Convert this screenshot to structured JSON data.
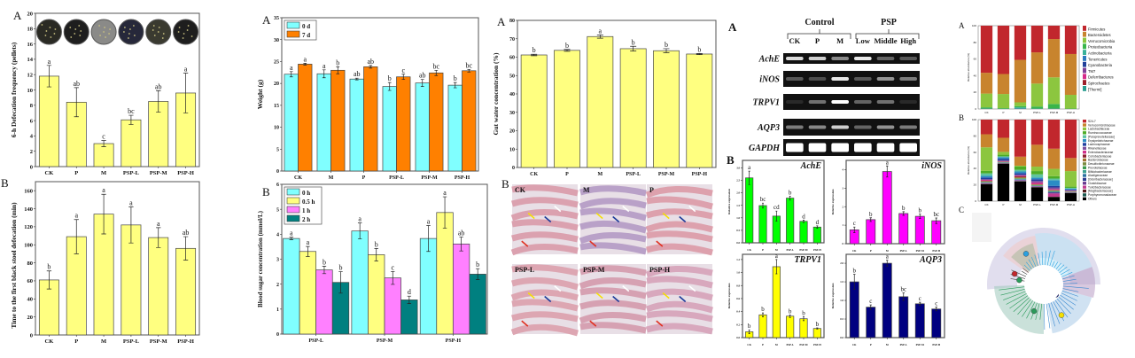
{
  "panel_letters": {
    "defecation": "A",
    "first_black_stool": "B",
    "weight": "A",
    "blood_sugar": "B",
    "gut_water": "A",
    "histology": "B",
    "gel": "A",
    "qpcr": "B",
    "phylum": "A",
    "family": "B",
    "cladogram": "C"
  },
  "chart_data": [
    {
      "id": "defecation",
      "type": "bar",
      "categories": [
        "CK",
        "P",
        "M",
        "PSP-L",
        "PSP-M",
        "PSP-H"
      ],
      "ylabel": "6-h Defecation frequency (pellets)",
      "ylim": [
        0,
        20
      ],
      "yticks": [
        0,
        2,
        4,
        6,
        8,
        10,
        12,
        14,
        16,
        18,
        20
      ],
      "series": [
        {
          "values": [
            11.8,
            8.4,
            3.0,
            6.1,
            8.5,
            9.6
          ],
          "errors": [
            1.4,
            1.9,
            0.4,
            0.6,
            1.4,
            2.6
          ],
          "letters": [
            "a",
            "ab",
            "c",
            "bc",
            "ab",
            "a"
          ],
          "color": "#ffff80"
        }
      ],
      "images": {
        "type": "fecal-pellet-plates",
        "tones": [
          "#2a2a24",
          "#1e1e1e",
          "#8a8a88",
          "#26283a",
          "#3a3a30",
          "#1e1e1e"
        ]
      }
    },
    {
      "id": "first_black_stool",
      "type": "bar",
      "categories": [
        "CK",
        "P",
        "M",
        "PSP-L",
        "PSP-M",
        "PSP-H"
      ],
      "ylabel": "Time to the first black stool defecation (min)",
      "ylim": [
        0,
        170
      ],
      "yticks": [
        0,
        20,
        40,
        60,
        80,
        100,
        120,
        140,
        160
      ],
      "series": [
        {
          "values": [
            61,
            109,
            134,
            122,
            108,
            96
          ],
          "errors": [
            10,
            19,
            22,
            20,
            11,
            13
          ],
          "letters": [
            "b",
            "a",
            "a",
            "a",
            "a",
            "ab"
          ],
          "color": "#ffff80"
        }
      ]
    },
    {
      "id": "weight",
      "type": "bar",
      "categories": [
        "CK",
        "M",
        "P",
        "PSP-L",
        "PSP-M",
        "PSP-H"
      ],
      "ylabel": "Weight (g)",
      "ylim": [
        0,
        35
      ],
      "yticks": [
        0,
        5,
        10,
        15,
        20,
        25,
        30,
        35
      ],
      "legend": "top-left",
      "series": [
        {
          "name": "0 d",
          "values": [
            22.1,
            22.2,
            21.0,
            19.3,
            20.1,
            19.6
          ],
          "errors": [
            0.6,
            0.9,
            0.2,
            0.9,
            0.8,
            0.6
          ],
          "letters": [
            "a",
            "a",
            "ab",
            "b",
            "ab",
            "b"
          ],
          "color": "#80ffff"
        },
        {
          "name": "7 d",
          "values": [
            24.4,
            23.0,
            23.8,
            21.5,
            22.4,
            22.9
          ],
          "errors": [
            0.2,
            0.8,
            0.3,
            0.6,
            0.6,
            0.3
          ],
          "letters": [
            "a",
            "b",
            "ab",
            "c",
            "bc",
            "bc"
          ],
          "color": "#ff8000"
        }
      ]
    },
    {
      "id": "blood_sugar",
      "type": "bar",
      "categories": [
        "PSP-L",
        "PSP-M",
        "PSP-H"
      ],
      "ylabel": "Blood sugar concentration (mmol/L)",
      "ylim": [
        0,
        6
      ],
      "yticks": [
        0,
        1,
        2,
        3,
        4,
        5,
        6
      ],
      "legend": "top-left",
      "series": [
        {
          "name": "0 h",
          "values": [
            3.83,
            4.13,
            3.83
          ],
          "errors": [
            0.05,
            0.32,
            0.52
          ],
          "letters": [
            "a",
            "a",
            "a"
          ],
          "color": "#80ffff"
        },
        {
          "name": "0.5 h",
          "values": [
            3.31,
            3.18,
            4.87
          ],
          "errors": [
            0.2,
            0.25,
            0.63
          ],
          "letters": [
            "a",
            "b",
            "a"
          ],
          "color": "#ffff80"
        },
        {
          "name": "1 h",
          "values": [
            2.57,
            2.25,
            3.61
          ],
          "errors": [
            0.15,
            0.26,
            0.28
          ],
          "letters": [
            "b",
            "c",
            "ab"
          ],
          "color": "#ff80ff"
        },
        {
          "name": "2 h",
          "values": [
            2.07,
            1.37,
            2.4
          ],
          "errors": [
            0.43,
            0.15,
            0.22
          ],
          "letters": [
            "b",
            "d",
            "b"
          ],
          "color": "#008080"
        }
      ]
    },
    {
      "id": "gut_water",
      "type": "bar",
      "categories": [
        "CK",
        "P",
        "M",
        "PSP-L",
        "PSP-M",
        "PSP-H"
      ],
      "ylabel": "Gut water concentration (%)",
      "ylim": [
        0,
        80
      ],
      "yticks": [
        0,
        10,
        20,
        30,
        40,
        50,
        60,
        70,
        80
      ],
      "series": [
        {
          "values": [
            61.2,
            63.7,
            71.2,
            64.6,
            63.5,
            61.7
          ],
          "errors": [
            0.4,
            0.5,
            0.9,
            1.3,
            1.1,
            0.3
          ],
          "letters": [
            "b",
            "b",
            "a",
            "b",
            "b",
            "b"
          ],
          "color": "#ffff80"
        }
      ]
    },
    {
      "id": "ache",
      "type": "bar",
      "title": "AchE",
      "categories": [
        "CK",
        "P",
        "M",
        "PSP-L",
        "PSP-M",
        "PSP-H"
      ],
      "ylabel": "Relative expression",
      "ylim": [
        0,
        3.3
      ],
      "yticks": [
        0,
        0.5,
        1.0,
        1.5,
        2.0,
        2.5,
        3.0
      ],
      "series": [
        {
          "values": [
            2.6,
            1.49,
            1.07,
            1.79,
            0.86,
            0.63
          ],
          "errors": [
            0.27,
            0.1,
            0.2,
            0.08,
            0.05,
            0.05
          ],
          "letters": [
            "a",
            "bc",
            "cd",
            "b",
            "d",
            "d"
          ],
          "color": "#00ff00"
        }
      ]
    },
    {
      "id": "inos",
      "type": "bar",
      "title": "iNOS",
      "categories": [
        "CK",
        "P",
        "M",
        "PSP-L",
        "PSP-M",
        "PSP-H"
      ],
      "ylabel": "Relative expression",
      "ylim": [
        0,
        4.5
      ],
      "yticks": [
        0,
        1,
        2,
        3,
        4
      ],
      "series": [
        {
          "values": [
            0.75,
            1.3,
            3.9,
            1.63,
            1.48,
            1.24
          ],
          "errors": [
            0.15,
            0.1,
            0.3,
            0.1,
            0.12,
            0.15
          ],
          "letters": [
            "c",
            "b",
            "a",
            "b",
            "b",
            "bc"
          ],
          "color": "#ff00ff"
        }
      ]
    },
    {
      "id": "trpv1",
      "type": "bar",
      "title": "TRPV1",
      "categories": [
        "CK",
        "P",
        "M",
        "PSP-L",
        "PSP-M",
        "PSP-H"
      ],
      "ylabel": "Relative expression",
      "ylim": [
        0,
        1.28
      ],
      "yticks": [
        0,
        0.2,
        0.4,
        0.6,
        0.8,
        1.0,
        1.2
      ],
      "series": [
        {
          "values": [
            0.09,
            0.35,
            1.09,
            0.33,
            0.29,
            0.14
          ],
          "errors": [
            0.03,
            0.03,
            0.11,
            0.02,
            0.03,
            0.01
          ],
          "letters": [
            "b",
            "b",
            "a",
            "b",
            "b",
            "b"
          ],
          "color": "#ffff00"
        }
      ]
    },
    {
      "id": "aqp3",
      "type": "bar",
      "title": "AQP3",
      "categories": [
        "CK",
        "P",
        "M",
        "PSP-L",
        "PSP-M",
        "PSP-H"
      ],
      "ylabel": "Relative expression",
      "ylim": [
        0,
        2.24
      ],
      "yticks": [
        0,
        0.5,
        1.0,
        1.5,
        2.0
      ],
      "series": [
        {
          "values": [
            1.5,
            0.82,
            2.0,
            1.1,
            0.91,
            0.77
          ],
          "errors": [
            0.2,
            0.06,
            0.08,
            0.1,
            0.04,
            0.05
          ],
          "letters": [
            "b",
            "c",
            "a",
            "bc",
            "c",
            "c"
          ],
          "color": "#000080"
        }
      ]
    },
    {
      "id": "phylum",
      "type": "stacked-bar",
      "categories": [
        "CK",
        "P",
        "M",
        "PSP-L",
        "PSP-M",
        "PSP-H"
      ],
      "ylabel": "Relative abundance (%)",
      "ylim": [
        0,
        100
      ],
      "yticks": [
        0,
        20,
        40,
        60,
        80,
        100
      ],
      "legend": "right",
      "series": [
        {
          "name": "Firmicutes",
          "color": "#c1272d",
          "values": [
            56.5,
            58,
            41,
            32,
            16,
            34
          ]
        },
        {
          "name": "Bacteroidetes",
          "color": "#c8842e",
          "values": [
            25,
            24,
            51,
            37.5,
            46,
            49
          ]
        },
        {
          "name": "Verrucomicrobia",
          "color": "#8cc63f",
          "values": [
            16.5,
            17,
            4.5,
            27.5,
            32,
            16.5
          ]
        },
        {
          "name": "Proteobacteria",
          "color": "#39b54a",
          "values": [
            1.5,
            0.8,
            1.5,
            2.5,
            5.5,
            0.4
          ]
        },
        {
          "name": "Actinobacteria",
          "color": "#3ab39a",
          "values": [
            0.2,
            0.1,
            1.5,
            0.3,
            0.2,
            0.05
          ]
        },
        {
          "name": "Tenericutes",
          "color": "#2e7bbf",
          "values": [
            0.1,
            0.05,
            0.2,
            0.1,
            0.1,
            0.02
          ]
        },
        {
          "name": "Cyanobacteria",
          "color": "#21409a",
          "values": [
            0.1,
            0.02,
            0.1,
            0.05,
            0.1,
            0.01
          ]
        },
        {
          "name": "TM7",
          "color": "#7f3f98",
          "values": [
            0.05,
            0.01,
            0.1,
            0.03,
            0.05,
            0.01
          ]
        },
        {
          "name": "Deferribacteres",
          "color": "#d6298a",
          "values": [
            0.02,
            0.01,
            0.05,
            0.01,
            0.03,
            0.01
          ]
        },
        {
          "name": "Spirochaetes",
          "color": "#9e1f2a",
          "values": [
            0.01,
            0.01,
            0.02,
            0.01,
            0.01,
            0.0
          ]
        },
        {
          "name": "[Thermi]",
          "color": "#2a9d8f",
          "values": [
            0.01,
            0.0,
            0.01,
            0.0,
            0.01,
            0.0
          ]
        }
      ]
    },
    {
      "id": "family",
      "type": "stacked-bar",
      "categories": [
        "CK",
        "P",
        "M",
        "PSP-L",
        "PSP-M",
        "PSP-H"
      ],
      "ylabel": "Relative abundance (%)",
      "ylim": [
        0,
        100
      ],
      "yticks": [
        0,
        20,
        40,
        60,
        80,
        100
      ],
      "legend": "right",
      "series": [
        {
          "name": "S24-7",
          "color": "#c1272d",
          "values": [
            18,
            22.5,
            45,
            31,
            36,
            47
          ]
        },
        {
          "name": "Verrucomicrobiaceae",
          "color": "#c8842e",
          "values": [
            16,
            17.5,
            11,
            27,
            25,
            16
          ]
        },
        {
          "name": "Lactobacillaceae",
          "color": "#8cc63f",
          "values": [
            29,
            3.5,
            1,
            5.5,
            9,
            19
          ]
        },
        {
          "name": "Ruminococcaceae",
          "color": "#4dac26",
          "values": [
            3,
            2,
            4,
            4,
            3,
            1.5
          ]
        },
        {
          "name": "[Paraprevotellaceae]",
          "color": "#5ec4a0",
          "values": [
            3,
            1,
            2,
            4,
            2,
            1
          ]
        },
        {
          "name": "Erysipelotrichaceae",
          "color": "#2b8cc4",
          "values": [
            2,
            2,
            2,
            2,
            7,
            1
          ]
        },
        {
          "name": "Lachnospiraceae",
          "color": "#2040a0",
          "values": [
            2,
            2,
            2,
            2,
            2,
            1
          ]
        },
        {
          "name": "Rikenellaceae",
          "color": "#7b4fa0",
          "values": [
            1,
            1,
            1,
            2,
            2,
            0.5
          ]
        },
        {
          "name": "Enterobacteriaceae",
          "color": "#d02e8a",
          "values": [
            1,
            0.5,
            1,
            2,
            1,
            0.5
          ]
        },
        {
          "name": "Coriobacteriaceae",
          "color": "#8c2030",
          "values": [
            0.5,
            0.3,
            1,
            0.5,
            0.5,
            0.3
          ]
        },
        {
          "name": "Bacteroidaceae",
          "color": "#a07030",
          "values": [
            0.5,
            0.3,
            1,
            0.5,
            0.5,
            0.3
          ]
        },
        {
          "name": "Desulfovibrionaceae",
          "color": "#7a8a40",
          "values": [
            0.5,
            0.3,
            0.5,
            0.5,
            0.5,
            0.3
          ]
        },
        {
          "name": "Prevotellaceae",
          "color": "#3a9a4a",
          "values": [
            0.5,
            0.3,
            0.5,
            0.5,
            0.5,
            0.2
          ]
        },
        {
          "name": "Bifidobacteriaceae",
          "color": "#3aa090",
          "values": [
            0.3,
            0.2,
            0.5,
            0.3,
            0.5,
            0.2
          ]
        },
        {
          "name": "Alcaligenaceae",
          "color": "#2a70a0",
          "values": [
            0.3,
            0.2,
            0.5,
            0.3,
            0.5,
            0.2
          ]
        },
        {
          "name": "[Odoribacteraceae]",
          "color": "#2a3a90",
          "values": [
            0.3,
            0.2,
            0.5,
            0.3,
            0.5,
            0.2
          ]
        },
        {
          "name": "Clostridiaceae",
          "color": "#6a3a90",
          "values": [
            0.3,
            0.2,
            0.5,
            0.3,
            1,
            0.2
          ]
        },
        {
          "name": "Turicibacteraceae",
          "color": "#c03a90",
          "values": [
            0.5,
            0.2,
            0.5,
            0.5,
            4,
            0.2
          ]
        },
        {
          "name": "[Mogibacteriaceae]",
          "color": "#501818",
          "values": [
            0.2,
            0.2,
            0.3,
            0.2,
            0.3,
            0.1
          ]
        },
        {
          "name": "Porphyromonadaceae",
          "color": "#1a5a50",
          "values": [
            0.2,
            0.2,
            0.3,
            0.2,
            0.2,
            0.1
          ]
        },
        {
          "name": "Others",
          "color": "#000000",
          "values": [
            21,
            46.5,
            24,
            17,
            5,
            10
          ]
        }
      ]
    }
  ],
  "histology": {
    "panels": [
      {
        "label": "CK",
        "tone": "#d99aa8"
      },
      {
        "label": "M",
        "tone": "#b49ac4"
      },
      {
        "label": "P",
        "tone": "#dc9aa6"
      },
      {
        "label": "PSP-L",
        "tone": "#dca0ac"
      },
      {
        "label": "PSP-M",
        "tone": "#d49aac"
      },
      {
        "label": "PSP-H",
        "tone": "#d6a2b8"
      }
    ]
  },
  "gel": {
    "groups": [
      {
        "label": "Control"
      },
      {
        "label": "PSP"
      }
    ],
    "lanes": [
      "CK",
      "P",
      "M",
      "Low",
      "Middle",
      "High"
    ],
    "rows": [
      {
        "gene": "AchE",
        "intensity": [
          0.85,
          0.8,
          0.5,
          0.9,
          0.35,
          0.3
        ]
      },
      {
        "gene": "iNOS",
        "intensity": [
          0.3,
          0.25,
          0.9,
          0.3,
          0.55,
          0.45
        ]
      },
      {
        "gene": "TRPV1",
        "intensity": [
          0.1,
          0.4,
          1.0,
          0.35,
          0.4,
          0.1
        ]
      },
      {
        "gene": "AQP3",
        "intensity": [
          0.45,
          0.5,
          0.8,
          0.35,
          0.55,
          0.45
        ]
      },
      {
        "gene": "GAPDH",
        "intensity": [
          1,
          1,
          1,
          1,
          1,
          1
        ]
      }
    ]
  }
}
